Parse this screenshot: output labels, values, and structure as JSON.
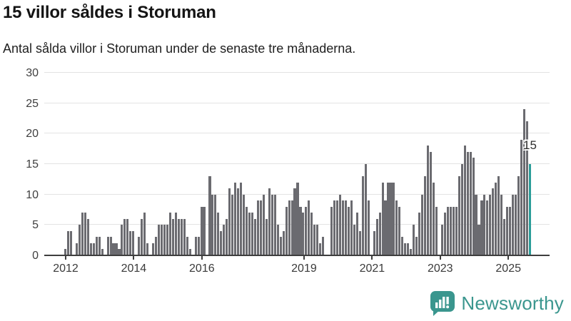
{
  "title": "15 villor såldes i Storuman",
  "subtitle": "Antal sålda villor i Storuman under de senaste tre månaderna.",
  "chart_data": {
    "type": "bar",
    "title": "15 villor såldes i Storuman",
    "xlabel": "",
    "ylabel": "",
    "ylim": [
      0,
      30
    ],
    "y_ticks": [
      0,
      5,
      10,
      15,
      20,
      25,
      30
    ],
    "grid": "horizontal",
    "x_tick_labels": [
      "2012",
      "2014",
      "2016",
      "2019",
      "2021",
      "2023",
      "2025"
    ],
    "x_tick_indices": [
      0,
      24,
      48,
      84,
      108,
      132,
      156
    ],
    "values": [
      1,
      4,
      4,
      0,
      2,
      5,
      7,
      7,
      6,
      2,
      2,
      3,
      3,
      1,
      0,
      3,
      3,
      2,
      2,
      1,
      5,
      6,
      6,
      4,
      4,
      0,
      3,
      6,
      7,
      2,
      0,
      2,
      3,
      5,
      5,
      5,
      5,
      7,
      6,
      7,
      6,
      6,
      6,
      3,
      1,
      0,
      3,
      3,
      8,
      8,
      0,
      13,
      10,
      10,
      7,
      4,
      5,
      6,
      11,
      10,
      12,
      11,
      12,
      10,
      8,
      7,
      7,
      6,
      9,
      9,
      10,
      6,
      11,
      10,
      10,
      5,
      3,
      4,
      8,
      9,
      9,
      11,
      12,
      8,
      7,
      8,
      9,
      7,
      5,
      5,
      2,
      3,
      0,
      0,
      8,
      9,
      9,
      10,
      9,
      9,
      8,
      9,
      5,
      7,
      4,
      13,
      15,
      9,
      0,
      4,
      6,
      7,
      12,
      9,
      12,
      12,
      12,
      9,
      8,
      3,
      2,
      2,
      1,
      5,
      3,
      7,
      10,
      13,
      18,
      17,
      12,
      8,
      0,
      5,
      7,
      8,
      8,
      8,
      8,
      13,
      15,
      18,
      17,
      17,
      16,
      10,
      5,
      9,
      10,
      9,
      10,
      11,
      12,
      13,
      10,
      6,
      8,
      8,
      10,
      10,
      13,
      19,
      24,
      22,
      15
    ],
    "highlight_index": 164,
    "highlight_value": 15,
    "highlight_label": "15",
    "bar_color": "#6b6b70",
    "highlight_color": "#2a9d99",
    "legend": "none"
  },
  "footer": {
    "brand": "Newsworthy",
    "logo_icon": "bar-chart-speech-bubble-icon",
    "brand_color": "#3a968e"
  }
}
